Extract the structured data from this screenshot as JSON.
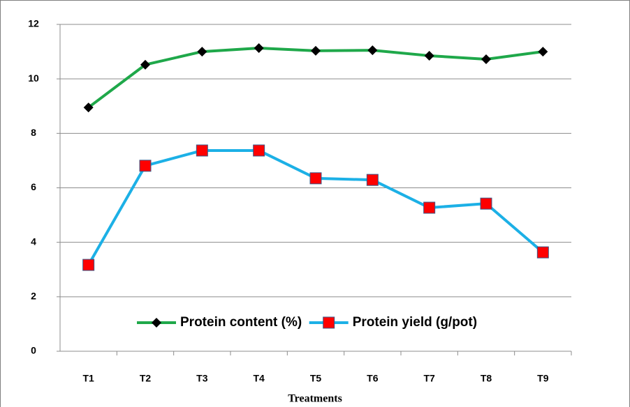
{
  "chart_data": {
    "type": "line",
    "x_label": "Treatments",
    "categories": [
      "T1",
      "T2",
      "T3",
      "T4",
      "T5",
      "T6",
      "T7",
      "T8",
      "T9"
    ],
    "series": [
      {
        "name": "Protein content (%)",
        "color": "#1fa84a",
        "marker": "diamond",
        "marker_color": "#000000",
        "values": [
          8.95,
          10.52,
          11.0,
          11.13,
          11.03,
          11.05,
          10.85,
          10.72,
          11.0
        ]
      },
      {
        "name": "Protein yield (g/pot)",
        "color": "#1cb0e6",
        "marker": "square",
        "marker_color": "#ff0000",
        "values": [
          3.17,
          6.81,
          7.37,
          7.37,
          6.35,
          6.29,
          5.27,
          5.42,
          3.63
        ]
      }
    ],
    "ylim": [
      0,
      12
    ],
    "yticks": [
      0,
      2,
      4,
      6,
      8,
      10,
      12
    ],
    "grid": true,
    "legend": "lower center"
  }
}
